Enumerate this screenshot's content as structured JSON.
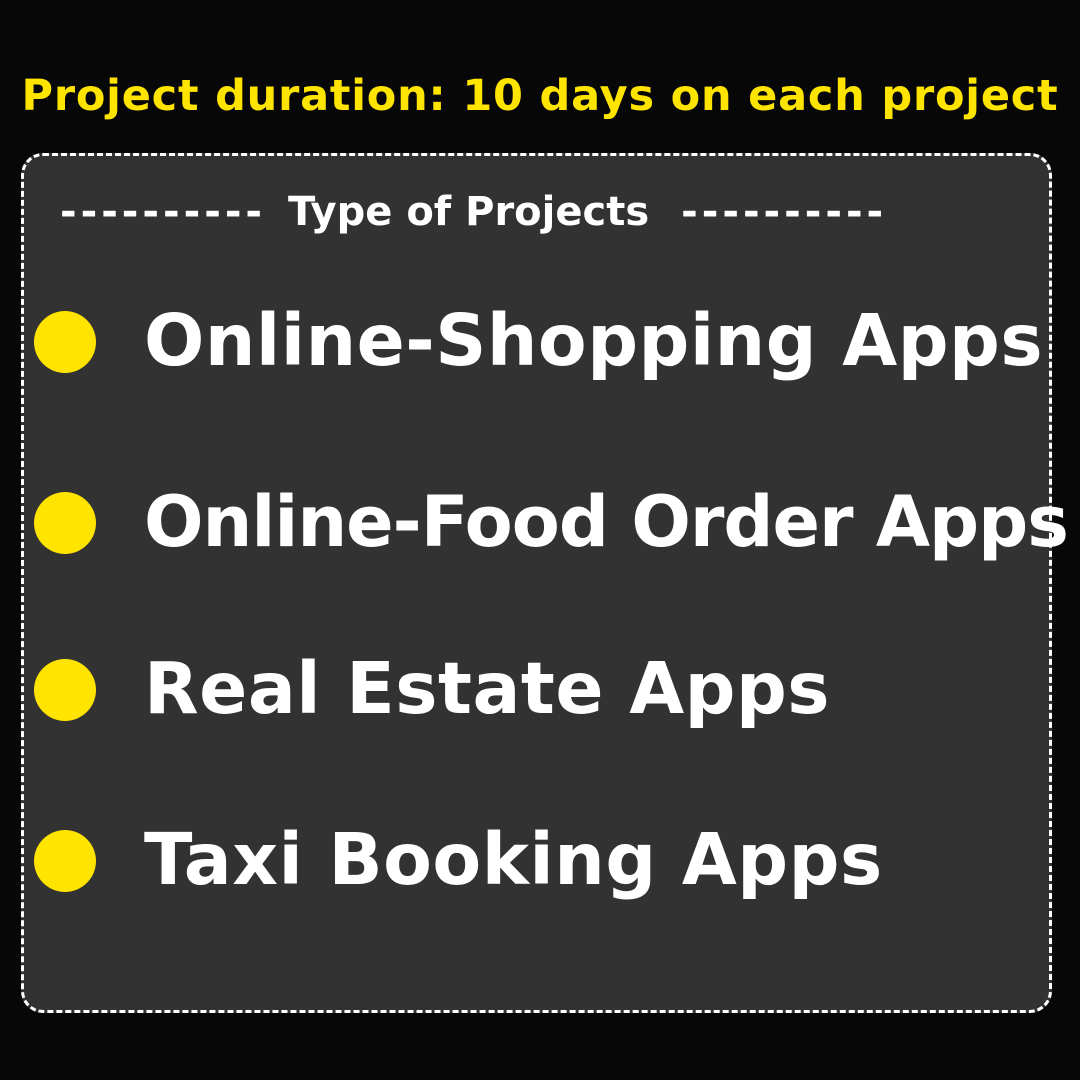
{
  "headline": "Project duration: 10 days on each project",
  "card": {
    "subtitle": {
      "left_dashes": "----------",
      "label": "Type of Projects",
      "right_dashes": "----------"
    },
    "items": [
      {
        "label": "Online-Shopping Apps",
        "bullet_icon": "yellow-circle-bullet-icon"
      },
      {
        "label": "Online-Food Order Apps",
        "bullet_icon": "yellow-circle-bullet-icon"
      },
      {
        "label": "Real Estate Apps",
        "bullet_icon": "yellow-circle-bullet-icon"
      },
      {
        "label": "Taxi Booking Apps",
        "bullet_icon": "yellow-circle-bullet-icon"
      }
    ]
  },
  "colors": {
    "background": "#070707",
    "card": "#323232",
    "accent": "#ffe400",
    "text": "#ffffff",
    "border": "#ffffff"
  }
}
